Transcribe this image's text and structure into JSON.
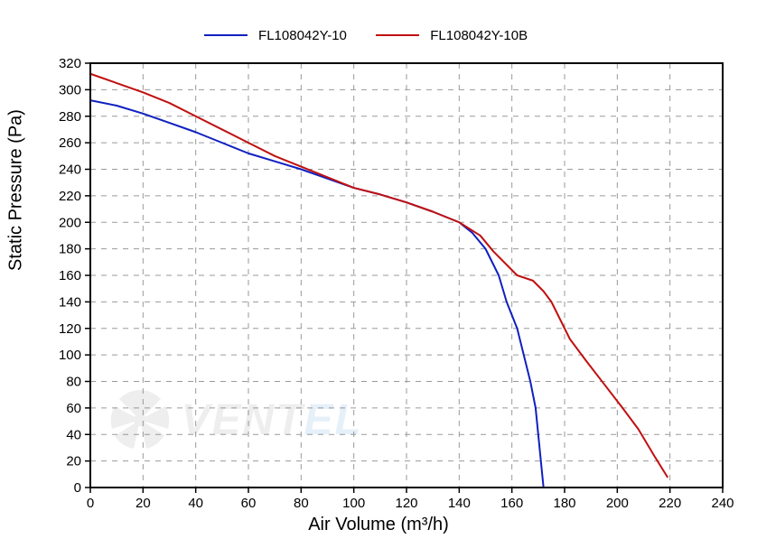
{
  "chart": {
    "type": "line",
    "background_color": "#ffffff",
    "plot_border_color": "#000000",
    "plot_border_width": 2,
    "grid_color": "#9a9a9a",
    "grid_dash": "6 6",
    "grid_width": 1,
    "x_axis": {
      "label": "Air Volume (m³/h)",
      "label_fontsize": 20,
      "min": 0,
      "max": 240,
      "tick_step": 20,
      "tick_fontsize": 15,
      "ticks": [
        0,
        20,
        40,
        60,
        80,
        100,
        120,
        140,
        160,
        180,
        200,
        220,
        240
      ]
    },
    "y_axis": {
      "label": "Static Pressure (Pa)",
      "label_fontsize": 20,
      "min": 0,
      "max": 320,
      "tick_step": 20,
      "tick_fontsize": 15,
      "ticks": [
        0,
        20,
        40,
        60,
        80,
        100,
        120,
        140,
        160,
        180,
        200,
        220,
        240,
        260,
        280,
        300,
        320
      ]
    },
    "legend": {
      "position": "top-center",
      "fontsize": 15,
      "items": [
        {
          "label": "FL108042Y-10",
          "color": "#1020c0"
        },
        {
          "label": "FL108042Y-10B",
          "color": "#c01010"
        }
      ]
    },
    "series": [
      {
        "name": "FL108042Y-10",
        "color": "#1020c0",
        "line_width": 2,
        "points": [
          [
            0,
            292
          ],
          [
            10,
            288
          ],
          [
            20,
            282
          ],
          [
            30,
            275
          ],
          [
            40,
            268
          ],
          [
            50,
            260
          ],
          [
            60,
            252
          ],
          [
            70,
            246
          ],
          [
            80,
            240
          ],
          [
            90,
            233
          ],
          [
            100,
            226
          ],
          [
            110,
            221
          ],
          [
            120,
            215
          ],
          [
            130,
            208
          ],
          [
            140,
            200
          ],
          [
            145,
            192
          ],
          [
            150,
            180
          ],
          [
            155,
            160
          ],
          [
            158,
            140
          ],
          [
            162,
            120
          ],
          [
            165,
            96
          ],
          [
            167,
            80
          ],
          [
            169,
            60
          ],
          [
            170,
            40
          ],
          [
            171,
            20
          ],
          [
            172,
            0
          ]
        ]
      },
      {
        "name": "FL108042Y-10B",
        "color": "#c01010",
        "line_width": 2,
        "points": [
          [
            0,
            312
          ],
          [
            10,
            305
          ],
          [
            20,
            298
          ],
          [
            30,
            290
          ],
          [
            40,
            280
          ],
          [
            50,
            270
          ],
          [
            60,
            260
          ],
          [
            70,
            250
          ],
          [
            80,
            242
          ],
          [
            90,
            234
          ],
          [
            100,
            226
          ],
          [
            110,
            221
          ],
          [
            120,
            215
          ],
          [
            130,
            208
          ],
          [
            140,
            200
          ],
          [
            148,
            190
          ],
          [
            153,
            178
          ],
          [
            158,
            168
          ],
          [
            162,
            160
          ],
          [
            168,
            156
          ],
          [
            172,
            148
          ],
          [
            175,
            140
          ],
          [
            178,
            128
          ],
          [
            182,
            112
          ],
          [
            188,
            96
          ],
          [
            195,
            78
          ],
          [
            202,
            60
          ],
          [
            208,
            44
          ],
          [
            214,
            24
          ],
          [
            219,
            8
          ]
        ]
      }
    ],
    "watermark": {
      "text_main": "VENT",
      "text_accent": "EL",
      "color_main": "#808080",
      "color_accent": "#4a90d9",
      "opacity": 0.13
    }
  }
}
